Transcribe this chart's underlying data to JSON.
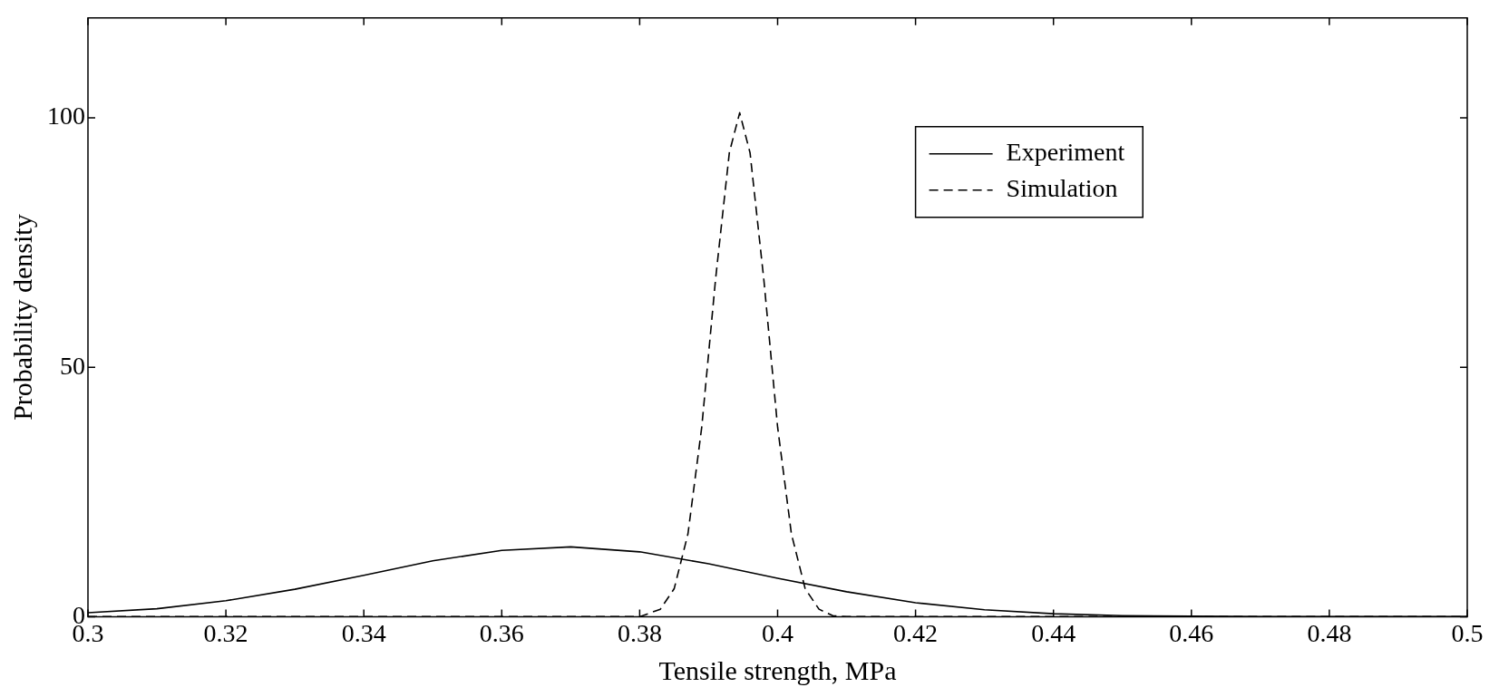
{
  "chart_data": {
    "type": "line",
    "xlabel": "Tensile strength, MPa",
    "ylabel": "Probability density",
    "xlim": [
      0.3,
      0.5
    ],
    "ylim": [
      0,
      120
    ],
    "xticks": [
      {
        "value": 0.3,
        "label": "0.3"
      },
      {
        "value": 0.32,
        "label": "0.32"
      },
      {
        "value": 0.34,
        "label": "0.34"
      },
      {
        "value": 0.36,
        "label": "0.36"
      },
      {
        "value": 0.38,
        "label": "0.38"
      },
      {
        "value": 0.4,
        "label": "0.4"
      },
      {
        "value": 0.42,
        "label": "0.42"
      },
      {
        "value": 0.44,
        "label": "0.44"
      },
      {
        "value": 0.46,
        "label": "0.46"
      },
      {
        "value": 0.48,
        "label": "0.48"
      },
      {
        "value": 0.5,
        "label": "0.5"
      }
    ],
    "yticks": [
      0,
      50,
      100
    ],
    "grid": false,
    "legend": "top right",
    "marker": "none",
    "series": [
      {
        "name": "Experiment",
        "color": "#000000",
        "line_style": "solid",
        "x": [
          0.3,
          0.31,
          0.32,
          0.33,
          0.34,
          0.35,
          0.36,
          0.37,
          0.38,
          0.39,
          0.4,
          0.41,
          0.42,
          0.43,
          0.44,
          0.45,
          0.46,
          0.47,
          0.48,
          0.5
        ],
        "values": [
          0.8,
          1.6,
          3.2,
          5.5,
          8.3,
          11.2,
          13.3,
          14,
          13,
          10.6,
          7.7,
          5,
          2.8,
          1.4,
          0.6,
          0.2,
          0.1,
          0,
          0,
          0
        ]
      },
      {
        "name": "Simulation",
        "color": "#000000",
        "line_style": "dashed",
        "x": [
          0.3,
          0.38,
          0.383,
          0.385,
          0.387,
          0.389,
          0.391,
          0.393,
          0.3945,
          0.396,
          0.398,
          0.4,
          0.402,
          0.404,
          0.406,
          0.408,
          0.41,
          0.5
        ],
        "values": [
          0,
          0,
          1.5,
          5.6,
          16.6,
          38,
          67.6,
          93,
          101,
          93,
          67.6,
          38,
          16.6,
          5.6,
          1.5,
          0.2,
          0,
          0
        ]
      }
    ]
  }
}
